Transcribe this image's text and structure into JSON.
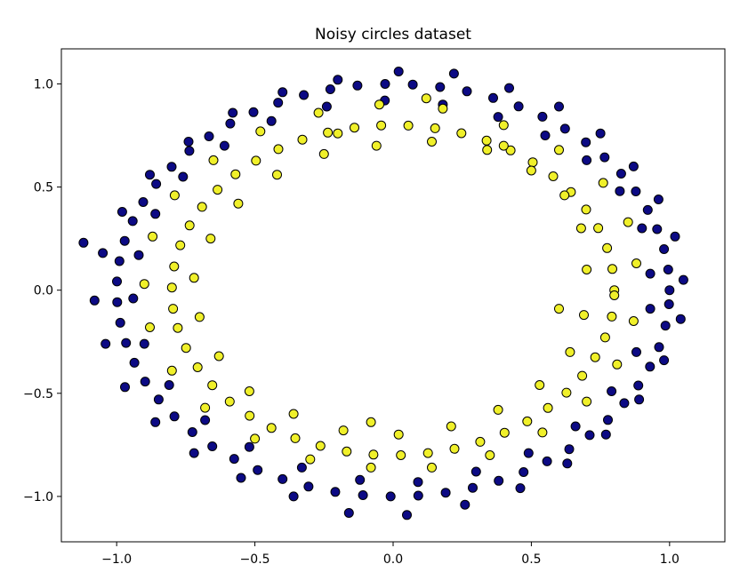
{
  "chart_data": {
    "type": "scatter",
    "title": "Noisy circles dataset",
    "xlabel": "",
    "ylabel": "",
    "xlim": [
      -1.2,
      1.2
    ],
    "ylim": [
      -1.22,
      1.17
    ],
    "xticks": [
      -1.0,
      -0.5,
      0.0,
      0.5,
      1.0
    ],
    "xtick_labels": [
      "−1.0",
      "−0.5",
      "0.0",
      "0.5",
      "1.0"
    ],
    "yticks": [
      1.0,
      0.5,
      0.0,
      -0.5,
      -1.0
    ],
    "ytick_labels": [
      "1.0",
      "0.5",
      "0.0",
      "−0.5",
      "−1.0"
    ],
    "grid": false,
    "series": [
      {
        "color": "#0c0a84",
        "points": [
          [
            1.0,
            0.0
          ],
          [
            0.995,
            0.1
          ],
          [
            0.98,
            0.199
          ],
          [
            0.955,
            0.296
          ],
          [
            0.921,
            0.389
          ],
          [
            0.878,
            0.479
          ],
          [
            0.825,
            0.565
          ],
          [
            0.765,
            0.644
          ],
          [
            0.697,
            0.717
          ],
          [
            0.622,
            0.783
          ],
          [
            0.54,
            0.841
          ],
          [
            0.454,
            0.891
          ],
          [
            0.362,
            0.932
          ],
          [
            0.267,
            0.964
          ],
          [
            0.17,
            0.985
          ],
          [
            0.071,
            0.997
          ],
          [
            -0.029,
            1.0
          ],
          [
            -0.129,
            0.992
          ],
          [
            -0.227,
            0.974
          ],
          [
            -0.323,
            0.946
          ],
          [
            -0.416,
            0.909
          ],
          [
            -0.505,
            0.863
          ],
          [
            -0.589,
            0.808
          ],
          [
            -0.666,
            0.746
          ],
          [
            -0.737,
            0.675
          ],
          [
            -0.801,
            0.598
          ],
          [
            -0.857,
            0.515
          ],
          [
            -0.904,
            0.427
          ],
          [
            -0.942,
            0.335
          ],
          [
            -0.971,
            0.239
          ],
          [
            -0.99,
            0.141
          ],
          [
            -0.999,
            0.042
          ],
          [
            -0.998,
            -0.058
          ],
          [
            -0.987,
            -0.158
          ],
          [
            -0.966,
            -0.256
          ],
          [
            -0.936,
            -0.352
          ],
          [
            -0.897,
            -0.443
          ],
          [
            -0.848,
            -0.53
          ],
          [
            -0.791,
            -0.612
          ],
          [
            -0.726,
            -0.688
          ],
          [
            -0.654,
            -0.757
          ],
          [
            -0.575,
            -0.818
          ],
          [
            -0.49,
            -0.872
          ],
          [
            -0.4,
            -0.916
          ],
          [
            -0.306,
            -0.952
          ],
          [
            -0.209,
            -0.978
          ],
          [
            -0.109,
            -0.994
          ],
          [
            -0.009,
            -1.0
          ],
          [
            0.091,
            -0.996
          ],
          [
            0.19,
            -0.982
          ],
          [
            0.288,
            -0.958
          ],
          [
            0.382,
            -0.924
          ],
          [
            0.472,
            -0.882
          ],
          [
            0.557,
            -0.83
          ],
          [
            0.637,
            -0.771
          ],
          [
            0.711,
            -0.703
          ],
          [
            0.777,
            -0.629
          ],
          [
            0.836,
            -0.548
          ],
          [
            0.887,
            -0.462
          ],
          [
            0.929,
            -0.371
          ],
          [
            0.962,
            -0.276
          ],
          [
            0.985,
            -0.172
          ],
          [
            0.998,
            -0.068
          ],
          [
            1.05,
            0.05
          ],
          [
            1.02,
            0.26
          ],
          [
            0.96,
            0.44
          ],
          [
            0.87,
            0.6
          ],
          [
            0.75,
            0.76
          ],
          [
            0.6,
            0.89
          ],
          [
            0.42,
            0.98
          ],
          [
            0.22,
            1.05
          ],
          [
            0.02,
            1.06
          ],
          [
            -0.2,
            1.02
          ],
          [
            -0.4,
            0.96
          ],
          [
            -0.58,
            0.86
          ],
          [
            -0.74,
            0.72
          ],
          [
            -0.88,
            0.56
          ],
          [
            -0.98,
            0.38
          ],
          [
            -1.05,
            0.18
          ],
          [
            -1.12,
            0.23
          ],
          [
            -1.08,
            -0.05
          ],
          [
            -1.04,
            -0.26
          ],
          [
            -0.97,
            -0.47
          ],
          [
            -0.86,
            -0.64
          ],
          [
            -0.72,
            -0.79
          ],
          [
            -0.55,
            -0.91
          ],
          [
            -0.36,
            -1.0
          ],
          [
            -0.16,
            -1.08
          ],
          [
            0.05,
            -1.09
          ],
          [
            0.26,
            -1.04
          ],
          [
            0.46,
            -0.96
          ],
          [
            0.63,
            -0.84
          ],
          [
            0.77,
            -0.7
          ],
          [
            0.89,
            -0.53
          ],
          [
            0.98,
            -0.34
          ],
          [
            1.04,
            -0.14
          ],
          [
            0.93,
            0.08
          ],
          [
            0.9,
            0.3
          ],
          [
            0.82,
            0.48
          ],
          [
            0.7,
            0.63
          ],
          [
            0.55,
            0.75
          ],
          [
            0.38,
            0.84
          ],
          [
            0.18,
            0.9
          ],
          [
            -0.03,
            0.92
          ],
          [
            -0.24,
            0.89
          ],
          [
            -0.44,
            0.82
          ],
          [
            -0.61,
            0.7
          ],
          [
            -0.76,
            0.55
          ],
          [
            -0.86,
            0.37
          ],
          [
            -0.92,
            0.17
          ],
          [
            -0.94,
            -0.04
          ],
          [
            -0.9,
            -0.26
          ],
          [
            -0.81,
            -0.46
          ],
          [
            -0.68,
            -0.63
          ],
          [
            -0.52,
            -0.76
          ],
          [
            -0.33,
            -0.86
          ],
          [
            -0.12,
            -0.92
          ],
          [
            0.09,
            -0.93
          ],
          [
            0.3,
            -0.88
          ],
          [
            0.49,
            -0.79
          ],
          [
            0.66,
            -0.66
          ],
          [
            0.79,
            -0.49
          ],
          [
            0.88,
            -0.3
          ],
          [
            0.93,
            -0.09
          ]
        ]
      },
      {
        "color": "#f0f02a",
        "points": [
          [
            0.8,
            0.0
          ],
          [
            0.793,
            0.103
          ],
          [
            0.774,
            0.204
          ],
          [
            0.742,
            0.301
          ],
          [
            0.698,
            0.391
          ],
          [
            0.643,
            0.476
          ],
          [
            0.579,
            0.552
          ],
          [
            0.505,
            0.62
          ],
          [
            0.425,
            0.678
          ],
          [
            0.338,
            0.725
          ],
          [
            0.247,
            0.761
          ],
          [
            0.152,
            0.785
          ],
          [
            0.055,
            0.798
          ],
          [
            -0.043,
            0.799
          ],
          [
            -0.14,
            0.788
          ],
          [
            -0.236,
            0.764
          ],
          [
            -0.328,
            0.73
          ],
          [
            -0.415,
            0.684
          ],
          [
            -0.496,
            0.628
          ],
          [
            -0.57,
            0.562
          ],
          [
            -0.635,
            0.487
          ],
          [
            -0.691,
            0.404
          ],
          [
            -0.736,
            0.314
          ],
          [
            -0.77,
            0.218
          ],
          [
            -0.792,
            0.115
          ],
          [
            -0.8,
            0.013
          ],
          [
            -0.796,
            -0.09
          ],
          [
            -0.779,
            -0.183
          ],
          [
            -0.749,
            -0.28
          ],
          [
            -0.707,
            -0.374
          ],
          [
            -0.654,
            -0.461
          ],
          [
            -0.591,
            -0.54
          ],
          [
            -0.519,
            -0.609
          ],
          [
            -0.44,
            -0.668
          ],
          [
            -0.354,
            -0.718
          ],
          [
            -0.263,
            -0.755
          ],
          [
            -0.168,
            -0.782
          ],
          [
            -0.071,
            -0.797
          ],
          [
            0.028,
            -0.8
          ],
          [
            0.126,
            -0.79
          ],
          [
            0.222,
            -0.769
          ],
          [
            0.315,
            -0.735
          ],
          [
            0.403,
            -0.691
          ],
          [
            0.485,
            -0.636
          ],
          [
            0.56,
            -0.571
          ],
          [
            0.627,
            -0.497
          ],
          [
            0.684,
            -0.415
          ],
          [
            0.731,
            -0.325
          ],
          [
            0.767,
            -0.229
          ],
          [
            0.791,
            -0.128
          ],
          [
            0.8,
            -0.025
          ],
          [
            0.7,
            0.1
          ],
          [
            0.68,
            0.3
          ],
          [
            0.62,
            0.46
          ],
          [
            0.5,
            0.58
          ],
          [
            0.34,
            0.68
          ],
          [
            0.14,
            0.72
          ],
          [
            -0.06,
            0.7
          ],
          [
            -0.25,
            0.66
          ],
          [
            -0.42,
            0.56
          ],
          [
            -0.56,
            0.42
          ],
          [
            -0.66,
            0.25
          ],
          [
            -0.72,
            0.06
          ],
          [
            -0.7,
            -0.13
          ],
          [
            -0.63,
            -0.32
          ],
          [
            -0.52,
            -0.49
          ],
          [
            -0.36,
            -0.6
          ],
          [
            -0.18,
            -0.68
          ],
          [
            0.02,
            -0.7
          ],
          [
            0.21,
            -0.66
          ],
          [
            0.38,
            -0.58
          ],
          [
            0.53,
            -0.46
          ],
          [
            0.64,
            -0.3
          ],
          [
            0.69,
            -0.12
          ],
          [
            0.88,
            0.13
          ],
          [
            0.85,
            0.33
          ],
          [
            0.76,
            0.52
          ],
          [
            0.6,
            0.68
          ],
          [
            0.4,
            0.8
          ],
          [
            0.18,
            0.88
          ],
          [
            -0.05,
            0.9
          ],
          [
            -0.27,
            0.86
          ],
          [
            -0.48,
            0.77
          ],
          [
            -0.65,
            0.63
          ],
          [
            -0.79,
            0.46
          ],
          [
            -0.87,
            0.26
          ],
          [
            -0.9,
            0.03
          ],
          [
            -0.88,
            -0.18
          ],
          [
            -0.8,
            -0.39
          ],
          [
            -0.68,
            -0.57
          ],
          [
            -0.5,
            -0.72
          ],
          [
            -0.3,
            -0.82
          ],
          [
            -0.08,
            -0.86
          ],
          [
            0.14,
            -0.86
          ],
          [
            0.35,
            -0.8
          ],
          [
            0.54,
            -0.69
          ],
          [
            0.7,
            -0.54
          ],
          [
            0.81,
            -0.36
          ],
          [
            0.87,
            -0.15
          ],
          [
            0.12,
            0.93
          ],
          [
            -0.08,
            -0.64
          ],
          [
            0.6,
            -0.09
          ],
          [
            -0.2,
            0.76
          ],
          [
            0.4,
            0.7
          ]
        ]
      }
    ]
  }
}
